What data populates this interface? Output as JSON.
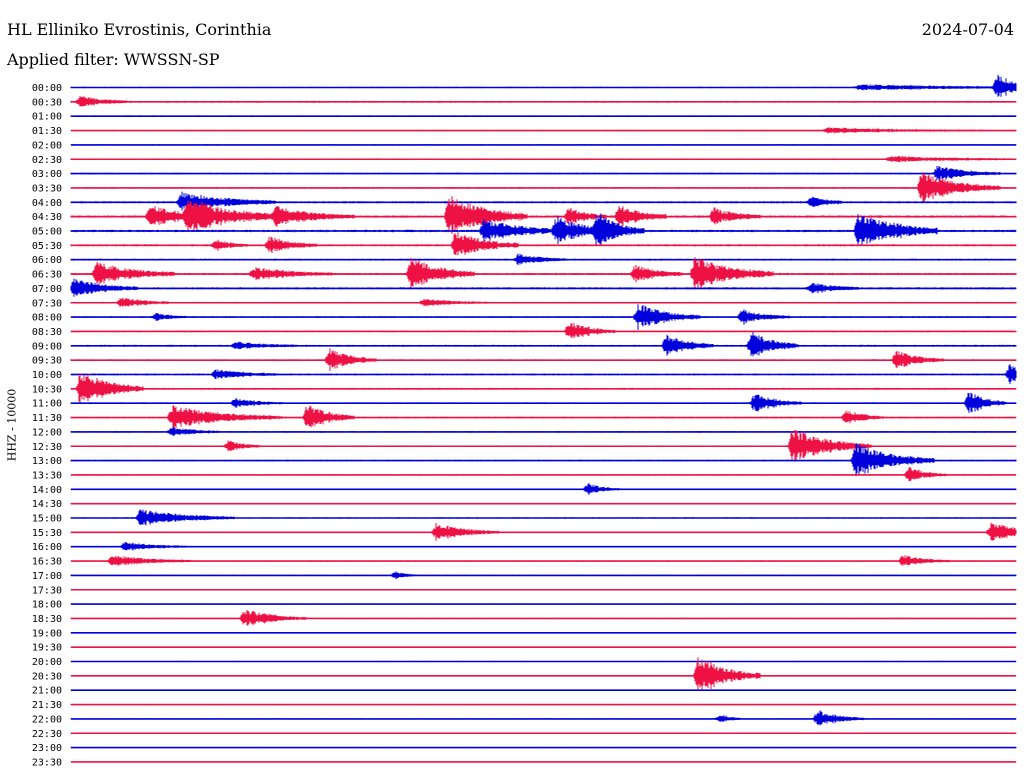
{
  "header": {
    "station": "HL Elliniko Evrostinis, Corinthia",
    "date": "2024-07-04",
    "filter": "Applied filter: WWSSN-SP"
  },
  "chart_data": {
    "type": "seismogram",
    "ylabel": "HHZ - 10000",
    "row_labels": [
      "00:00",
      "00:30",
      "01:00",
      "01:30",
      "02:00",
      "02:30",
      "03:00",
      "03:30",
      "04:00",
      "04:30",
      "05:00",
      "05:30",
      "06:00",
      "06:30",
      "07:00",
      "07:30",
      "08:00",
      "08:30",
      "09:00",
      "09:30",
      "10:00",
      "10:30",
      "11:00",
      "11:30",
      "12:00",
      "12:30",
      "13:00",
      "13:30",
      "14:00",
      "14:30",
      "15:00",
      "15:30",
      "16:00",
      "16:30",
      "17:00",
      "17:30",
      "18:00",
      "18:30",
      "19:00",
      "19:30",
      "20:00",
      "20:30",
      "21:00",
      "21:30",
      "22:00",
      "22:30",
      "23:00",
      "23:30"
    ],
    "x_minutes_per_row": 30,
    "colors": [
      "#0000dd",
      "#ee1144"
    ],
    "trace_noise_level": [
      0.5,
      0.7,
      0.6,
      0.5,
      0.5,
      0.6,
      0.6,
      0.6,
      0.8,
      0.9,
      0.9,
      0.8,
      0.7,
      0.8,
      0.8,
      0.6,
      0.6,
      0.6,
      0.7,
      0.6,
      0.7,
      0.7,
      0.6,
      0.6,
      0.6,
      0.6,
      0.6,
      0.5,
      0.5,
      0.4,
      0.5,
      0.5,
      0.5,
      0.5,
      0.5,
      0.4,
      0.4,
      0.4,
      0.4,
      0.4,
      0.4,
      0.4,
      0.4,
      0.4,
      0.4,
      0.3,
      0.4,
      0.3
    ],
    "events": [
      {
        "row": 0,
        "minute": 29.4,
        "amp": 14,
        "dur": 1.2
      },
      {
        "row": 0,
        "minute": 25.0,
        "amp": 3,
        "dur": 7
      },
      {
        "row": 1,
        "minute": 0.3,
        "amp": 6,
        "dur": 1.5
      },
      {
        "row": 3,
        "minute": 24.0,
        "amp": 3,
        "dur": 5
      },
      {
        "row": 5,
        "minute": 26.0,
        "amp": 3,
        "dur": 4
      },
      {
        "row": 6,
        "minute": 27.5,
        "amp": 8,
        "dur": 2
      },
      {
        "row": 7,
        "minute": 27.0,
        "amp": 16,
        "dur": 2.5
      },
      {
        "row": 8,
        "minute": 3.5,
        "amp": 10,
        "dur": 3
      },
      {
        "row": 8,
        "minute": 23.5,
        "amp": 6,
        "dur": 1
      },
      {
        "row": 9,
        "minute": 2.5,
        "amp": 12,
        "dur": 2
      },
      {
        "row": 9,
        "minute": 3.7,
        "amp": 18,
        "dur": 3
      },
      {
        "row": 9,
        "minute": 6.5,
        "amp": 10,
        "dur": 2.5
      },
      {
        "row": 9,
        "minute": 12.0,
        "amp": 22,
        "dur": 2.5
      },
      {
        "row": 9,
        "minute": 15.8,
        "amp": 9,
        "dur": 1.2
      },
      {
        "row": 9,
        "minute": 17.4,
        "amp": 12,
        "dur": 1.5
      },
      {
        "row": 9,
        "minute": 20.4,
        "amp": 9,
        "dur": 1.5
      },
      {
        "row": 10,
        "minute": 13.1,
        "amp": 12,
        "dur": 2.5
      },
      {
        "row": 10,
        "minute": 15.4,
        "amp": 14,
        "dur": 2
      },
      {
        "row": 10,
        "minute": 16.7,
        "amp": 18,
        "dur": 1.5
      },
      {
        "row": 10,
        "minute": 25.0,
        "amp": 20,
        "dur": 2.5
      },
      {
        "row": 11,
        "minute": 12.2,
        "amp": 14,
        "dur": 2
      },
      {
        "row": 11,
        "minute": 6.3,
        "amp": 9,
        "dur": 1.5
      },
      {
        "row": 11,
        "minute": 4.6,
        "amp": 6,
        "dur": 1
      },
      {
        "row": 12,
        "minute": 14.2,
        "amp": 6,
        "dur": 1.5
      },
      {
        "row": 13,
        "minute": 0.8,
        "amp": 12,
        "dur": 2.5
      },
      {
        "row": 13,
        "minute": 10.8,
        "amp": 18,
        "dur": 2
      },
      {
        "row": 13,
        "minute": 19.8,
        "amp": 18,
        "dur": 2.5
      },
      {
        "row": 13,
        "minute": 17.9,
        "amp": 9,
        "dur": 1.5
      },
      {
        "row": 13,
        "minute": 5.8,
        "amp": 7,
        "dur": 2.5
      },
      {
        "row": 14,
        "minute": 0.1,
        "amp": 10,
        "dur": 2
      },
      {
        "row": 14,
        "minute": 23.5,
        "amp": 6,
        "dur": 1.5
      },
      {
        "row": 15,
        "minute": 1.6,
        "amp": 6,
        "dur": 1.5
      },
      {
        "row": 15,
        "minute": 11.2,
        "amp": 4,
        "dur": 2
      },
      {
        "row": 16,
        "minute": 18.0,
        "amp": 14,
        "dur": 2
      },
      {
        "row": 16,
        "minute": 21.3,
        "amp": 8,
        "dur": 1.5
      },
      {
        "row": 16,
        "minute": 2.7,
        "amp": 4,
        "dur": 1
      },
      {
        "row": 17,
        "minute": 15.8,
        "amp": 10,
        "dur": 1.5
      },
      {
        "row": 18,
        "minute": 18.9,
        "amp": 12,
        "dur": 1.5
      },
      {
        "row": 18,
        "minute": 21.6,
        "amp": 14,
        "dur": 1.5
      },
      {
        "row": 18,
        "minute": 5.2,
        "amp": 4,
        "dur": 2
      },
      {
        "row": 19,
        "minute": 8.2,
        "amp": 12,
        "dur": 1.5
      },
      {
        "row": 19,
        "minute": 26.2,
        "amp": 10,
        "dur": 1.5
      },
      {
        "row": 20,
        "minute": 4.6,
        "amp": 5,
        "dur": 2
      },
      {
        "row": 20,
        "minute": 29.8,
        "amp": 10,
        "dur": 1
      },
      {
        "row": 21,
        "minute": 0.3,
        "amp": 18,
        "dur": 2
      },
      {
        "row": 22,
        "minute": 21.7,
        "amp": 10,
        "dur": 1.5
      },
      {
        "row": 22,
        "minute": 28.5,
        "amp": 12,
        "dur": 1.2
      },
      {
        "row": 22,
        "minute": 5.2,
        "amp": 5,
        "dur": 1.5
      },
      {
        "row": 23,
        "minute": 3.2,
        "amp": 12,
        "dur": 3.5
      },
      {
        "row": 23,
        "minute": 7.5,
        "amp": 14,
        "dur": 1.5
      },
      {
        "row": 23,
        "minute": 24.6,
        "amp": 8,
        "dur": 1.2
      },
      {
        "row": 24,
        "minute": 3.2,
        "amp": 5,
        "dur": 1.5
      },
      {
        "row": 25,
        "minute": 22.9,
        "amp": 18,
        "dur": 2.5
      },
      {
        "row": 25,
        "minute": 5.0,
        "amp": 6,
        "dur": 1
      },
      {
        "row": 26,
        "minute": 24.9,
        "amp": 18,
        "dur": 2.5
      },
      {
        "row": 27,
        "minute": 26.6,
        "amp": 8,
        "dur": 1.2
      },
      {
        "row": 28,
        "minute": 16.4,
        "amp": 6,
        "dur": 1
      },
      {
        "row": 30,
        "minute": 2.2,
        "amp": 9,
        "dur": 3
      },
      {
        "row": 31,
        "minute": 11.6,
        "amp": 10,
        "dur": 2
      },
      {
        "row": 31,
        "minute": 29.2,
        "amp": 10,
        "dur": 2
      },
      {
        "row": 32,
        "minute": 1.7,
        "amp": 5,
        "dur": 2
      },
      {
        "row": 33,
        "minute": 1.3,
        "amp": 6,
        "dur": 2.5
      },
      {
        "row": 33,
        "minute": 26.4,
        "amp": 6,
        "dur": 1.5
      },
      {
        "row": 34,
        "minute": 10.3,
        "amp": 4,
        "dur": 0.7
      },
      {
        "row": 37,
        "minute": 5.5,
        "amp": 10,
        "dur": 2
      },
      {
        "row": 41,
        "minute": 19.9,
        "amp": 22,
        "dur": 2
      },
      {
        "row": 44,
        "minute": 20.6,
        "amp": 5,
        "dur": 0.7
      },
      {
        "row": 44,
        "minute": 23.7,
        "amp": 9,
        "dur": 1.5
      }
    ]
  }
}
